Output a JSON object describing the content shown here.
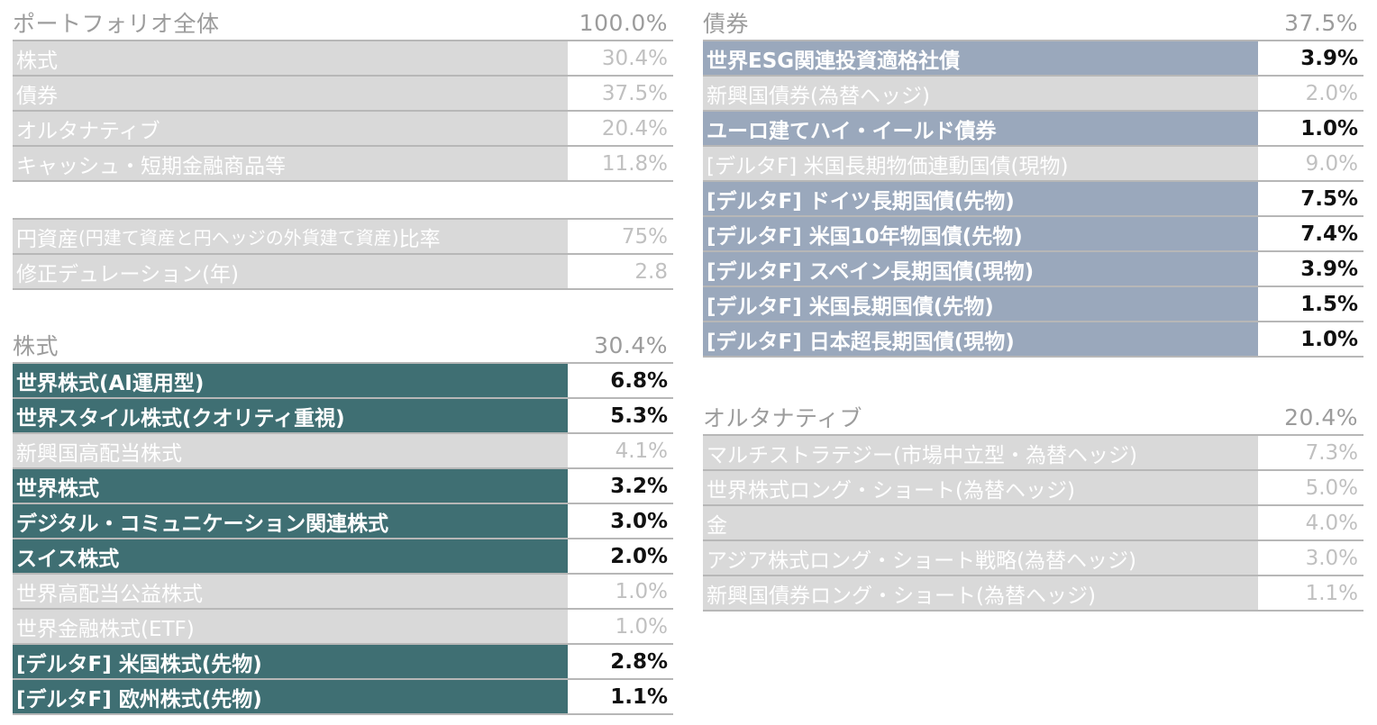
{
  "portfolio": {
    "header": {
      "label": "ポートフォリオ全体",
      "value": "100.0%"
    },
    "rows": [
      {
        "label": "株式",
        "value": "30.4%"
      },
      {
        "label": "債券",
        "value": "37.5%"
      },
      {
        "label": "オルタナティブ",
        "value": "20.4%"
      },
      {
        "label": "キャッシュ・短期金融商品等",
        "value": "11.8%"
      }
    ],
    "yen_ratio": {
      "label_main": "円資産",
      "label_note": "(円建て資産と円ヘッジの外貨建て資産)",
      "label_tail": "比率",
      "value": "75%"
    },
    "duration": {
      "label": "修正デュレーション(年)",
      "value": "2.8"
    }
  },
  "equity": {
    "header": {
      "label": "株式",
      "value": "30.4%"
    },
    "rows": [
      {
        "label": "世界株式(AI運用型)",
        "value": "6.8%"
      },
      {
        "label": "世界スタイル株式(クオリティ重視)",
        "value": "5.3%"
      },
      {
        "label": "新興国高配当株式",
        "value": "4.1%"
      },
      {
        "label": "世界株式",
        "value": "3.2%"
      },
      {
        "label": "デジタル・コミュニケーション関連株式",
        "value": "3.0%"
      },
      {
        "label": "スイス株式",
        "value": "2.0%"
      },
      {
        "label": "世界高配当公益株式",
        "value": "1.0%"
      },
      {
        "label": "世界金融株式(ETF)",
        "value": "1.0%"
      },
      {
        "label": "[デルタF] 米国株式(先物)",
        "value": "2.8%"
      },
      {
        "label": "[デルタF] 欧州株式(先物)",
        "value": "1.1%"
      }
    ]
  },
  "bond": {
    "header": {
      "label": "債券",
      "value": "37.5%"
    },
    "rows": [
      {
        "label": "世界ESG関連投資適格社債",
        "value": "3.9%"
      },
      {
        "label": "新興国債券(為替ヘッジ)",
        "value": "2.0%"
      },
      {
        "label": "ユーロ建てハイ・イールド債券",
        "value": "1.0%"
      },
      {
        "label": "[デルタF] 米国長期物価連動国債(現物)",
        "value": "9.0%"
      },
      {
        "label": "[デルタF] ドイツ長期国債(先物)",
        "value": "7.5%"
      },
      {
        "label": "[デルタF] 米国10年物国債(先物)",
        "value": "7.4%"
      },
      {
        "label": "[デルタF] スペイン長期国債(現物)",
        "value": "3.9%"
      },
      {
        "label": "[デルタF] 米国長期国債(先物)",
        "value": "1.5%"
      },
      {
        "label": "[デルタF] 日本超長期国債(現物)",
        "value": "1.0%"
      }
    ]
  },
  "alternative": {
    "header": {
      "label": "オルタナティブ",
      "value": "20.4%"
    },
    "rows": [
      {
        "label": "マルチストラテジー(市場中立型・為替ヘッジ)",
        "value": "7.3%"
      },
      {
        "label": "世界株式ロング・ショート(為替ヘッジ)",
        "value": "5.0%"
      },
      {
        "label": "金",
        "value": "4.0%"
      },
      {
        "label": "アジア株式ロング・ショート戦略(為替ヘッジ)",
        "value": "3.0%"
      },
      {
        "label": "新興国債券ロング・ショート(為替ヘッジ)",
        "value": "1.1%"
      }
    ]
  }
}
